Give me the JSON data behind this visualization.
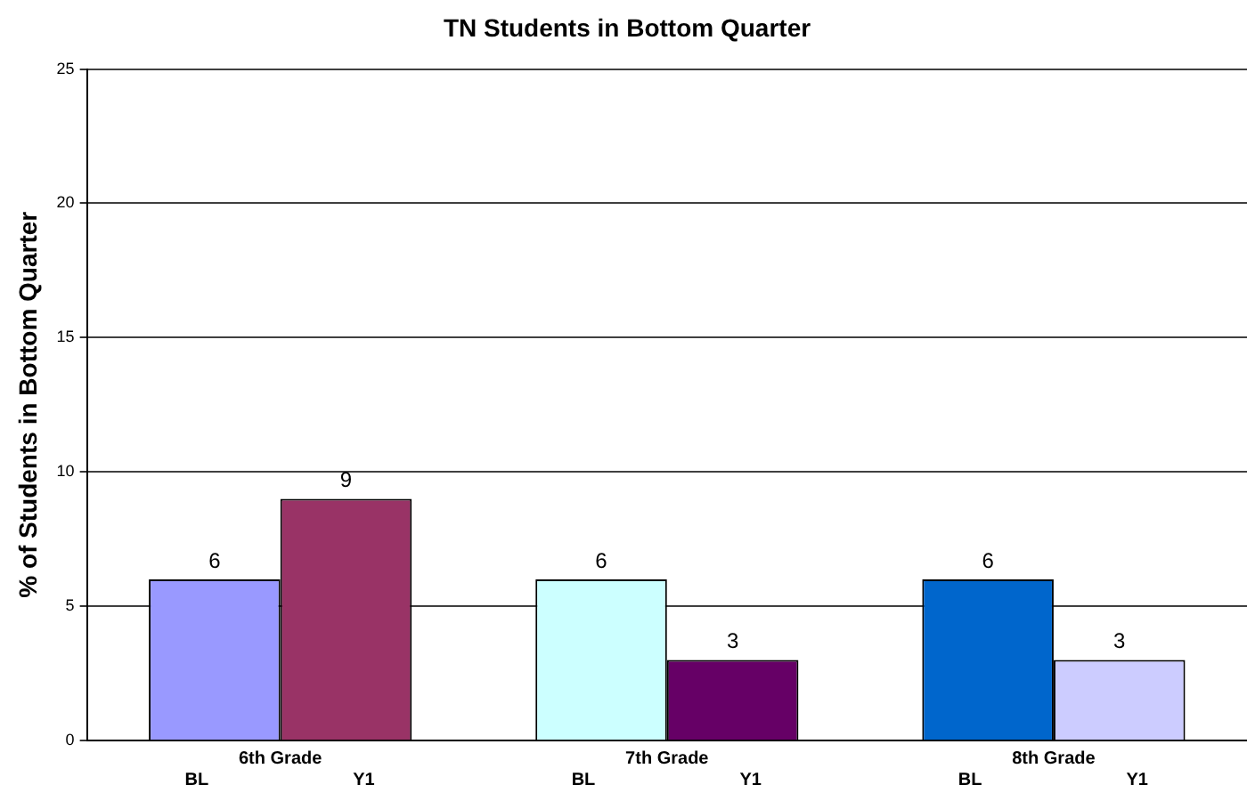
{
  "chart_data": {
    "type": "bar",
    "title": "TN Students in Bottom Quarter",
    "ylabel": "% of Students in Bottom Quarter",
    "categories": [
      "6th Grade",
      "7th Grade",
      "8th Grade"
    ],
    "series": [
      {
        "name": "BL",
        "colors": [
          "#9999ff",
          "#ccffff",
          "#0066cc"
        ],
        "values": [
          6,
          6,
          6
        ]
      },
      {
        "name": "Y1",
        "colors": [
          "#993366",
          "#660066",
          "#ccccff"
        ],
        "values": [
          9,
          3,
          3
        ]
      }
    ],
    "ylim": [
      0,
      25
    ],
    "yticks": [
      0,
      5,
      10,
      15,
      20,
      25
    ],
    "grid": "y",
    "data_labels": true,
    "legend": false
  }
}
